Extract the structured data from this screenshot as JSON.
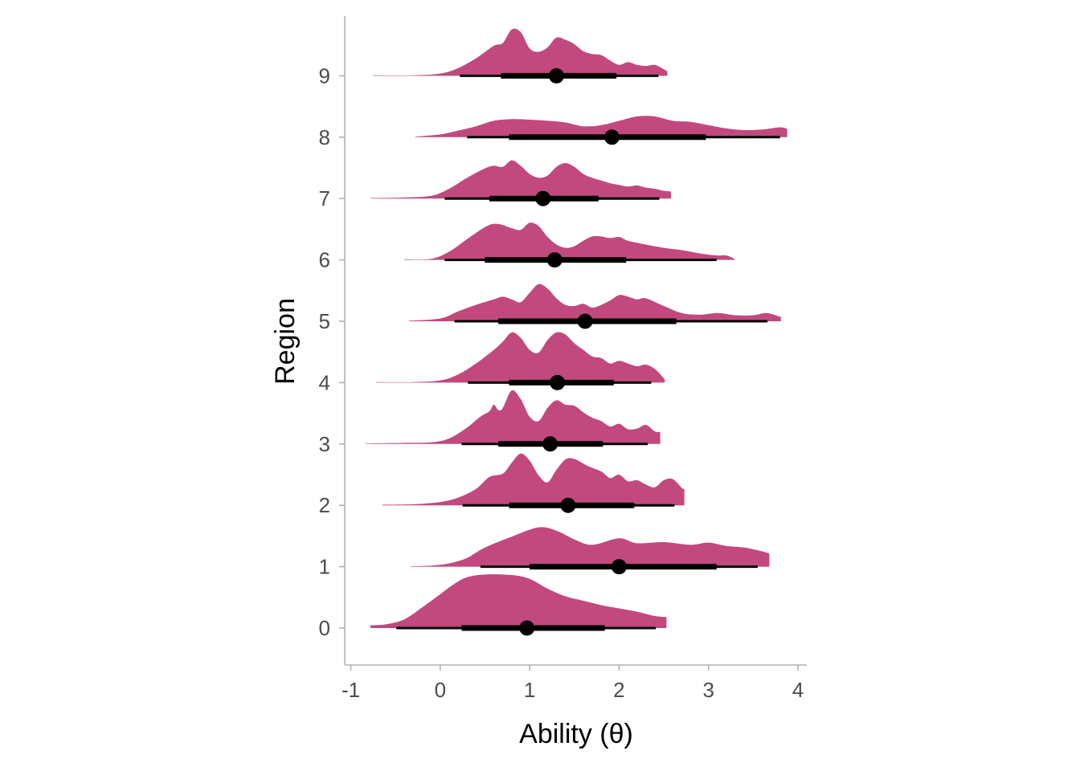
{
  "chart_data": {
    "type": "halfeye",
    "xlabel": "Ability (θ)",
    "ylabel": "Region",
    "xlim": [
      -1.1,
      4.1
    ],
    "x_ticks": [
      -1,
      0,
      1,
      2,
      3,
      4
    ],
    "x_tick_labels": [
      "-1",
      "0",
      "1",
      "2",
      "3",
      "4"
    ],
    "categories": [
      "0",
      "1",
      "2",
      "3",
      "4",
      "5",
      "6",
      "7",
      "8",
      "9"
    ],
    "fill_color": "#C2497E",
    "interval_color": "#000000",
    "grid": false,
    "intervals": [
      {
        "region": "0",
        "point": 0.97,
        "inner": [
          0.24,
          1.84
        ],
        "outer": [
          -0.49,
          2.41
        ]
      },
      {
        "region": "1",
        "point": 2.0,
        "inner": [
          1.0,
          3.09
        ],
        "outer": [
          0.45,
          3.55
        ]
      },
      {
        "region": "2",
        "point": 1.43,
        "inner": [
          0.77,
          2.17
        ],
        "outer": [
          0.25,
          2.62
        ]
      },
      {
        "region": "3",
        "point": 1.23,
        "inner": [
          0.65,
          1.82
        ],
        "outer": [
          0.24,
          2.32
        ]
      },
      {
        "region": "4",
        "point": 1.31,
        "inner": [
          0.77,
          1.94
        ],
        "outer": [
          0.31,
          2.36
        ]
      },
      {
        "region": "5",
        "point": 1.62,
        "inner": [
          0.65,
          2.64
        ],
        "outer": [
          0.16,
          3.66
        ]
      },
      {
        "region": "6",
        "point": 1.28,
        "inner": [
          0.5,
          2.08
        ],
        "outer": [
          0.05,
          3.09
        ]
      },
      {
        "region": "7",
        "point": 1.15,
        "inner": [
          0.55,
          1.77
        ],
        "outer": [
          0.05,
          2.45
        ]
      },
      {
        "region": "8",
        "point": 1.92,
        "inner": [
          0.77,
          2.97
        ],
        "outer": [
          0.3,
          3.8
        ]
      },
      {
        "region": "9",
        "point": 1.3,
        "inner": [
          0.68,
          1.97
        ],
        "outer": [
          0.22,
          2.44
        ]
      }
    ],
    "densities": [
      {
        "region": "0",
        "points": [
          [
            -0.78,
            0.05
          ],
          [
            -0.6,
            0.07
          ],
          [
            -0.4,
            0.16
          ],
          [
            -0.2,
            0.38
          ],
          [
            0,
            0.62
          ],
          [
            0.15,
            0.8
          ],
          [
            0.3,
            0.93
          ],
          [
            0.5,
            0.98
          ],
          [
            0.8,
            0.97
          ],
          [
            1.0,
            0.9
          ],
          [
            1.2,
            0.72
          ],
          [
            1.4,
            0.58
          ],
          [
            1.6,
            0.5
          ],
          [
            1.8,
            0.42
          ],
          [
            2.0,
            0.36
          ],
          [
            2.2,
            0.3
          ],
          [
            2.4,
            0.22
          ],
          [
            2.53,
            0.2
          ]
        ]
      },
      {
        "region": "1",
        "points": [
          [
            -0.33,
            0.01
          ],
          [
            -0.1,
            0.02
          ],
          [
            0.1,
            0.06
          ],
          [
            0.3,
            0.16
          ],
          [
            0.5,
            0.35
          ],
          [
            0.8,
            0.55
          ],
          [
            1.1,
            0.72
          ],
          [
            1.3,
            0.66
          ],
          [
            1.5,
            0.5
          ],
          [
            1.7,
            0.4
          ],
          [
            2.0,
            0.52
          ],
          [
            2.2,
            0.43
          ],
          [
            2.5,
            0.45
          ],
          [
            2.8,
            0.4
          ],
          [
            3.0,
            0.44
          ],
          [
            3.2,
            0.38
          ],
          [
            3.4,
            0.35
          ],
          [
            3.6,
            0.28
          ],
          [
            3.68,
            0.24
          ]
        ]
      },
      {
        "region": "2",
        "points": [
          [
            -0.65,
            0.01
          ],
          [
            -0.3,
            0.02
          ],
          [
            0,
            0.06
          ],
          [
            0.2,
            0.14
          ],
          [
            0.4,
            0.3
          ],
          [
            0.55,
            0.52
          ],
          [
            0.7,
            0.58
          ],
          [
            0.8,
            0.78
          ],
          [
            0.9,
            0.95
          ],
          [
            1.0,
            0.82
          ],
          [
            1.1,
            0.55
          ],
          [
            1.2,
            0.42
          ],
          [
            1.3,
            0.65
          ],
          [
            1.4,
            0.84
          ],
          [
            1.5,
            0.85
          ],
          [
            1.65,
            0.72
          ],
          [
            1.8,
            0.62
          ],
          [
            1.9,
            0.5
          ],
          [
            2.0,
            0.56
          ],
          [
            2.1,
            0.44
          ],
          [
            2.2,
            0.46
          ],
          [
            2.3,
            0.38
          ],
          [
            2.4,
            0.33
          ],
          [
            2.5,
            0.46
          ],
          [
            2.6,
            0.48
          ],
          [
            2.7,
            0.32
          ],
          [
            2.73,
            0.3
          ]
        ]
      },
      {
        "region": "3",
        "points": [
          [
            -0.83,
            0.01
          ],
          [
            -0.4,
            0.02
          ],
          [
            -0.1,
            0.03
          ],
          [
            0.1,
            0.1
          ],
          [
            0.3,
            0.3
          ],
          [
            0.45,
            0.5
          ],
          [
            0.55,
            0.6
          ],
          [
            0.6,
            0.72
          ],
          [
            0.65,
            0.62
          ],
          [
            0.7,
            0.66
          ],
          [
            0.8,
            0.98
          ],
          [
            0.9,
            0.82
          ],
          [
            1.0,
            0.5
          ],
          [
            1.1,
            0.42
          ],
          [
            1.2,
            0.66
          ],
          [
            1.3,
            0.8
          ],
          [
            1.4,
            0.72
          ],
          [
            1.5,
            0.7
          ],
          [
            1.6,
            0.58
          ],
          [
            1.7,
            0.48
          ],
          [
            1.8,
            0.42
          ],
          [
            1.9,
            0.32
          ],
          [
            2.0,
            0.37
          ],
          [
            2.1,
            0.27
          ],
          [
            2.2,
            0.28
          ],
          [
            2.3,
            0.35
          ],
          [
            2.4,
            0.23
          ],
          [
            2.46,
            0.22
          ]
        ]
      },
      {
        "region": "4",
        "points": [
          [
            -0.72,
            0.01
          ],
          [
            -0.3,
            0.01
          ],
          [
            0,
            0.04
          ],
          [
            0.2,
            0.15
          ],
          [
            0.4,
            0.35
          ],
          [
            0.6,
            0.6
          ],
          [
            0.7,
            0.75
          ],
          [
            0.8,
            0.92
          ],
          [
            0.9,
            0.82
          ],
          [
            1.0,
            0.6
          ],
          [
            1.1,
            0.55
          ],
          [
            1.2,
            0.78
          ],
          [
            1.3,
            0.92
          ],
          [
            1.4,
            0.88
          ],
          [
            1.5,
            0.72
          ],
          [
            1.6,
            0.6
          ],
          [
            1.7,
            0.48
          ],
          [
            1.8,
            0.45
          ],
          [
            1.9,
            0.35
          ],
          [
            2.0,
            0.4
          ],
          [
            2.1,
            0.35
          ],
          [
            2.2,
            0.3
          ],
          [
            2.3,
            0.33
          ],
          [
            2.4,
            0.25
          ],
          [
            2.5,
            0.08
          ],
          [
            2.51,
            0.06
          ]
        ]
      },
      {
        "region": "5",
        "points": [
          [
            -0.35,
            0.01
          ],
          [
            0,
            0.05
          ],
          [
            0.2,
            0.18
          ],
          [
            0.4,
            0.3
          ],
          [
            0.6,
            0.4
          ],
          [
            0.7,
            0.45
          ],
          [
            0.8,
            0.4
          ],
          [
            0.9,
            0.35
          ],
          [
            1.0,
            0.52
          ],
          [
            1.1,
            0.68
          ],
          [
            1.2,
            0.6
          ],
          [
            1.3,
            0.42
          ],
          [
            1.4,
            0.3
          ],
          [
            1.5,
            0.28
          ],
          [
            1.6,
            0.32
          ],
          [
            1.7,
            0.25
          ],
          [
            1.8,
            0.3
          ],
          [
            1.9,
            0.38
          ],
          [
            2.0,
            0.48
          ],
          [
            2.1,
            0.45
          ],
          [
            2.2,
            0.4
          ],
          [
            2.3,
            0.42
          ],
          [
            2.5,
            0.28
          ],
          [
            2.7,
            0.15
          ],
          [
            2.9,
            0.12
          ],
          [
            3.1,
            0.15
          ],
          [
            3.3,
            0.11
          ],
          [
            3.5,
            0.11
          ],
          [
            3.65,
            0.15
          ],
          [
            3.8,
            0.08
          ],
          [
            3.81,
            0.06
          ]
        ]
      },
      {
        "region": "6",
        "points": [
          [
            -0.4,
            0.01
          ],
          [
            -0.1,
            0.02
          ],
          [
            0.1,
            0.15
          ],
          [
            0.3,
            0.38
          ],
          [
            0.5,
            0.6
          ],
          [
            0.6,
            0.66
          ],
          [
            0.7,
            0.64
          ],
          [
            0.8,
            0.58
          ],
          [
            0.9,
            0.55
          ],
          [
            1.0,
            0.68
          ],
          [
            1.1,
            0.62
          ],
          [
            1.2,
            0.42
          ],
          [
            1.3,
            0.28
          ],
          [
            1.4,
            0.22
          ],
          [
            1.5,
            0.25
          ],
          [
            1.6,
            0.35
          ],
          [
            1.7,
            0.43
          ],
          [
            1.8,
            0.43
          ],
          [
            1.9,
            0.4
          ],
          [
            2.0,
            0.42
          ],
          [
            2.1,
            0.35
          ],
          [
            2.3,
            0.28
          ],
          [
            2.5,
            0.22
          ],
          [
            2.7,
            0.18
          ],
          [
            2.9,
            0.12
          ],
          [
            3.1,
            0.08
          ],
          [
            3.2,
            0.08
          ],
          [
            3.29,
            0.02
          ]
        ]
      },
      {
        "region": "7",
        "points": [
          [
            -0.78,
            0.01
          ],
          [
            -0.4,
            0.02
          ],
          [
            -0.1,
            0.05
          ],
          [
            0.1,
            0.18
          ],
          [
            0.3,
            0.38
          ],
          [
            0.5,
            0.55
          ],
          [
            0.6,
            0.6
          ],
          [
            0.7,
            0.58
          ],
          [
            0.8,
            0.7
          ],
          [
            0.9,
            0.6
          ],
          [
            1.0,
            0.45
          ],
          [
            1.1,
            0.38
          ],
          [
            1.2,
            0.42
          ],
          [
            1.3,
            0.58
          ],
          [
            1.4,
            0.65
          ],
          [
            1.5,
            0.58
          ],
          [
            1.6,
            0.45
          ],
          [
            1.7,
            0.38
          ],
          [
            1.8,
            0.33
          ],
          [
            1.9,
            0.28
          ],
          [
            2.0,
            0.25
          ],
          [
            2.1,
            0.22
          ],
          [
            2.2,
            0.24
          ],
          [
            2.3,
            0.2
          ],
          [
            2.4,
            0.18
          ],
          [
            2.5,
            0.14
          ],
          [
            2.58,
            0.13
          ]
        ]
      },
      {
        "region": "8",
        "points": [
          [
            -0.28,
            0.01
          ],
          [
            0,
            0.05
          ],
          [
            0.2,
            0.12
          ],
          [
            0.4,
            0.2
          ],
          [
            0.6,
            0.3
          ],
          [
            0.8,
            0.33
          ],
          [
            1.0,
            0.32
          ],
          [
            1.2,
            0.3
          ],
          [
            1.4,
            0.27
          ],
          [
            1.6,
            0.2
          ],
          [
            1.8,
            0.22
          ],
          [
            2.0,
            0.3
          ],
          [
            2.2,
            0.38
          ],
          [
            2.4,
            0.38
          ],
          [
            2.6,
            0.3
          ],
          [
            2.8,
            0.28
          ],
          [
            3.0,
            0.22
          ],
          [
            3.2,
            0.16
          ],
          [
            3.4,
            0.13
          ],
          [
            3.6,
            0.14
          ],
          [
            3.8,
            0.18
          ],
          [
            3.88,
            0.15
          ]
        ]
      },
      {
        "region": "9",
        "points": [
          [
            -0.75,
            0.01
          ],
          [
            -0.3,
            0.01
          ],
          [
            0,
            0.04
          ],
          [
            0.2,
            0.14
          ],
          [
            0.4,
            0.32
          ],
          [
            0.6,
            0.55
          ],
          [
            0.7,
            0.6
          ],
          [
            0.8,
            0.85
          ],
          [
            0.9,
            0.8
          ],
          [
            1.0,
            0.5
          ],
          [
            1.1,
            0.44
          ],
          [
            1.2,
            0.52
          ],
          [
            1.3,
            0.7
          ],
          [
            1.4,
            0.66
          ],
          [
            1.5,
            0.58
          ],
          [
            1.6,
            0.45
          ],
          [
            1.7,
            0.4
          ],
          [
            1.8,
            0.38
          ],
          [
            1.9,
            0.28
          ],
          [
            2.0,
            0.2
          ],
          [
            2.1,
            0.25
          ],
          [
            2.2,
            0.2
          ],
          [
            2.3,
            0.18
          ],
          [
            2.4,
            0.2
          ],
          [
            2.5,
            0.12
          ],
          [
            2.54,
            0.08
          ]
        ]
      }
    ]
  }
}
